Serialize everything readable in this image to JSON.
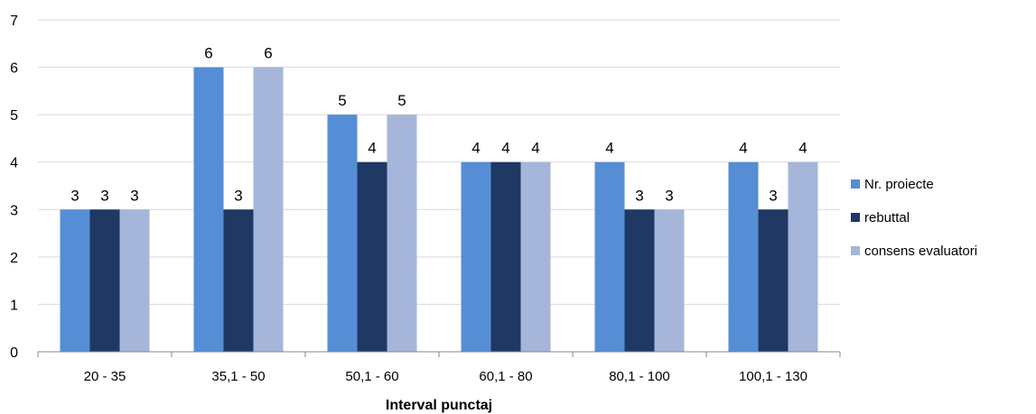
{
  "chart_data": {
    "type": "bar",
    "title": "",
    "xlabel": "Interval punctaj",
    "ylabel": "",
    "ylim": [
      0,
      7
    ],
    "yticks": [
      0,
      1,
      2,
      3,
      4,
      5,
      6,
      7
    ],
    "grid": true,
    "legend_position": "right",
    "categories": [
      "20 - 35",
      "35,1 - 50",
      "50,1 - 60",
      "60,1 - 80",
      "80,1 - 100",
      "100,1 - 130"
    ],
    "series": [
      {
        "name": "Nr. proiecte",
        "color": "#558ED5",
        "values": [
          3,
          6,
          5,
          4,
          4,
          4
        ]
      },
      {
        "name": "rebuttal",
        "color": "#1F3864",
        "values": [
          3,
          3,
          4,
          4,
          3,
          3
        ]
      },
      {
        "name": "consens evaluatori",
        "color": "#A6B5DA",
        "values": [
          3,
          6,
          5,
          4,
          3,
          4
        ]
      }
    ],
    "data_labels": true
  }
}
